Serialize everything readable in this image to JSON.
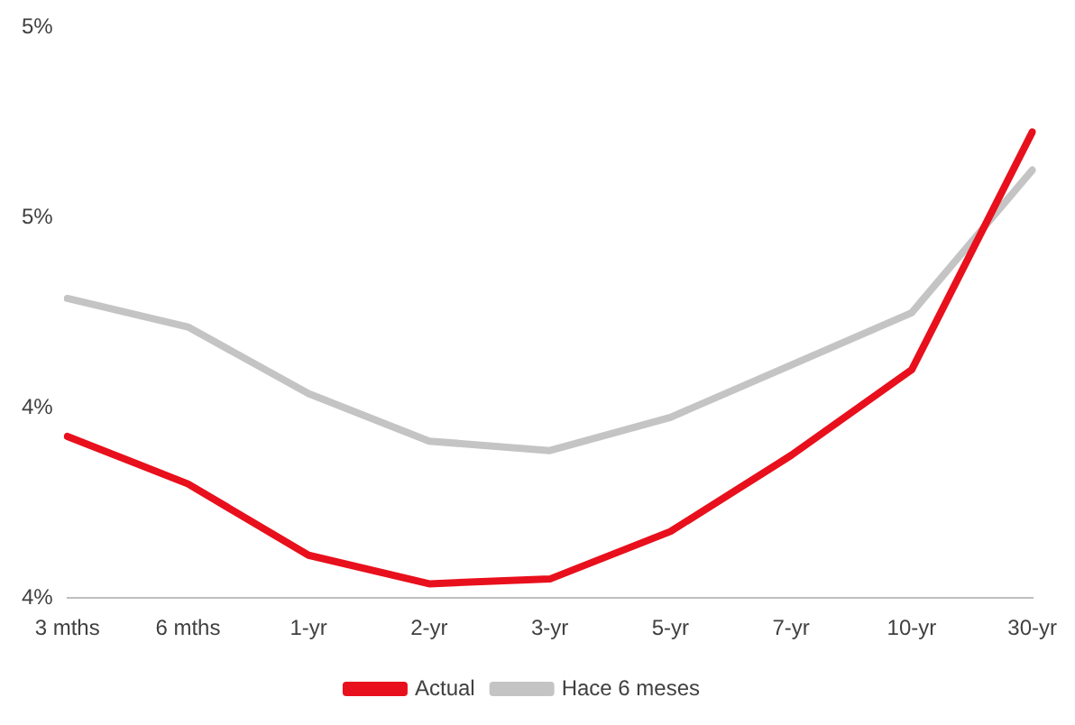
{
  "chart_data": {
    "type": "line",
    "categories": [
      "3 mths",
      "6 mths",
      "1-yr",
      "2-yr",
      "3-yr",
      "5-yr",
      "7-yr",
      "10-yr",
      "30-yr"
    ],
    "series": [
      {
        "name": "Actual",
        "color": "#e8101c",
        "values": [
          4.37,
          4.32,
          4.245,
          4.215,
          4.22,
          4.27,
          4.35,
          4.44,
          4.69
        ]
      },
      {
        "name": "Hace 6 meses",
        "color": "#c4c4c4",
        "values": [
          4.515,
          4.485,
          4.415,
          4.365,
          4.355,
          4.39,
          4.445,
          4.5,
          4.65
        ]
      }
    ],
    "ylim": [
      4.2,
      4.8
    ],
    "yticks": [
      {
        "value": 4.2,
        "label": "4%"
      },
      {
        "value": 4.4,
        "label": "4%"
      },
      {
        "value": 4.6,
        "label": "5%"
      },
      {
        "value": 4.8,
        "label": "5%"
      }
    ],
    "grid": false,
    "legend": "bottom",
    "marker": "none",
    "line_style": "solid"
  }
}
